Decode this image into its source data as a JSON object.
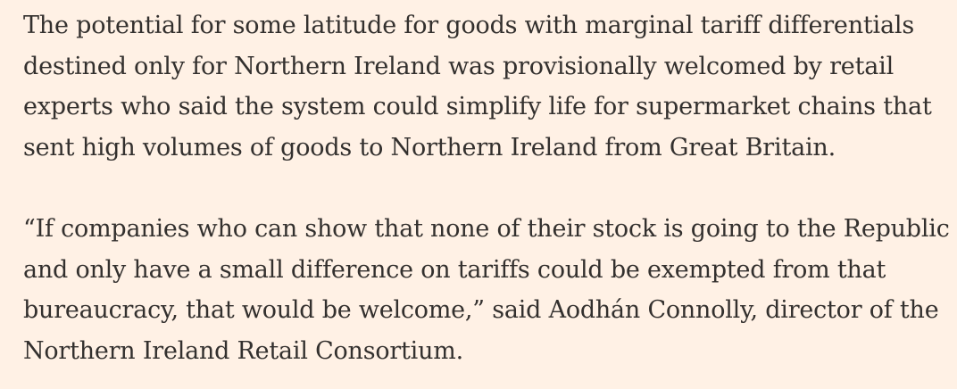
{
  "article": {
    "paragraphs": [
      {
        "lines": [
          "The potential for some latitude for goods with marginal tariff differentials",
          "destined only for Northern Ireland was provisionally welcomed by retail",
          "experts who said the system could simplify life for supermarket chains that",
          "sent high volumes of goods to Northern Ireland from Great Britain."
        ]
      },
      {
        "lines": [
          "“If companies who can show that none of their stock is going to the Republic",
          "and only have a small difference on tariffs could be exempted from that",
          "bureaucracy, that would be welcome,” said Aodhán Connolly, director of the",
          "Northern Ireland Retail Consortium."
        ]
      }
    ]
  }
}
